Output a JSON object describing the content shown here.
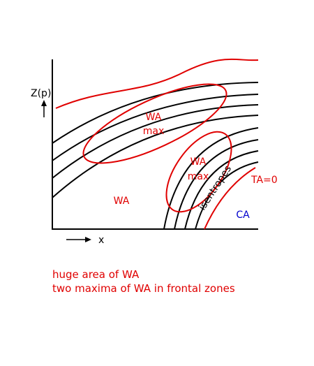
{
  "axes": {
    "y_label": "Z(p)",
    "x_label": "x"
  },
  "labels": {
    "upper_maximum": [
      "WA",
      "max"
    ],
    "lower_maximum": [
      "WA",
      "max"
    ],
    "warm_advection": "WA",
    "isentropes": "isentropes",
    "zero_line": "TA=0",
    "cold_advection": "CA"
  },
  "caption": [
    "huge area of WA",
    "two maxima of WA in frontal zones"
  ]
}
